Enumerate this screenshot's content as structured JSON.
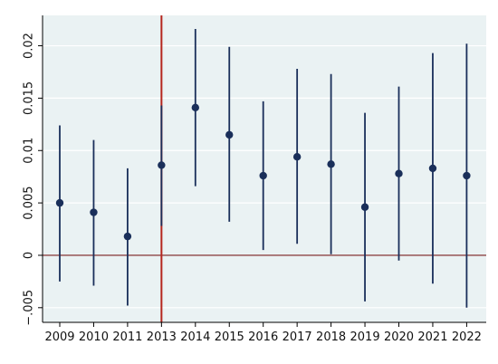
{
  "chart_data": {
    "type": "scatter",
    "title": "",
    "xlabel": "",
    "ylabel": "",
    "categories": [
      "2009",
      "2010",
      "2011",
      "2013",
      "2014",
      "2015",
      "2016",
      "2017",
      "2018",
      "2019",
      "2020",
      "2021",
      "2022"
    ],
    "series": [
      {
        "estimate": [
          0.005,
          0.0041,
          0.0018,
          0.0086,
          0.0141,
          0.0115,
          0.0076,
          0.0094,
          0.0087,
          0.0046,
          0.0078,
          0.0083,
          0.0076
        ],
        "ci_low": [
          -0.0025,
          -0.0029,
          -0.0048,
          0.0028,
          0.0066,
          0.0032,
          0.0005,
          0.0011,
          0.0001,
          -0.0044,
          -0.0005,
          -0.0027,
          -0.005
        ],
        "ci_high": [
          0.0124,
          0.011,
          0.0083,
          0.0143,
          0.0216,
          0.0199,
          0.0147,
          0.0178,
          0.0173,
          0.0136,
          0.0161,
          0.0193,
          0.0202
        ]
      }
    ],
    "ylim": [
      -0.0064,
      0.0229
    ],
    "yticks": [
      -0.005,
      0,
      0.005,
      0.01,
      0.015,
      0.02
    ],
    "ytick_labels": [
      "−.005",
      "0",
      "0.005",
      "0.01",
      "0.015",
      "0.02"
    ],
    "reference_lines": {
      "horizontal": 0,
      "vertical_category": "2013"
    },
    "colors": {
      "plot_background": "#eaf2f3",
      "series": "#1a2f5a",
      "zero_line": "#7a1f1f",
      "vertical_line": "#b5261e",
      "grid": "#ffffff",
      "axis": "#000000"
    },
    "grid": true,
    "legend": "none"
  }
}
